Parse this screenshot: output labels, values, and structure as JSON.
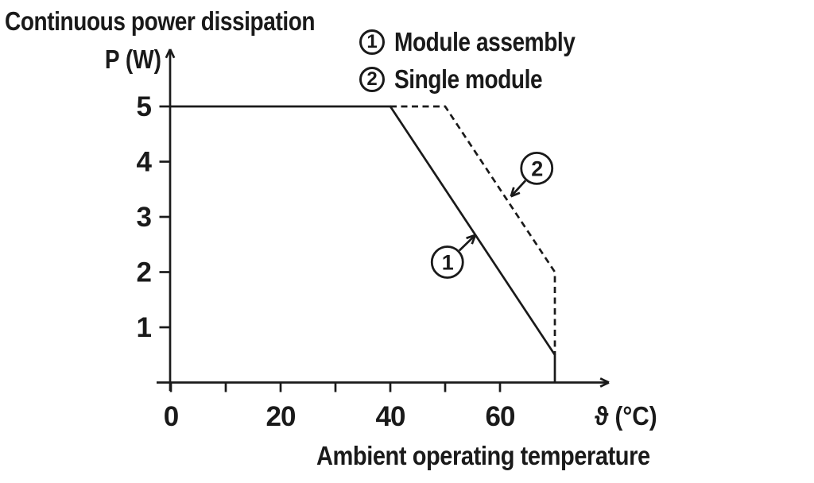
{
  "title": "Continuous power dissipation",
  "colors": {
    "line": "#1a1a1a",
    "background": "#ffffff"
  },
  "legend": [
    {
      "marker": "1",
      "label": "Module assembly"
    },
    {
      "marker": "2",
      "label": "Single module"
    }
  ],
  "chart_data": {
    "type": "line",
    "title": "Continuous power dissipation",
    "ylabel": "P (W)",
    "xlabel": "ϑ (°C)",
    "xlabel_caption": "Ambient operating temperature",
    "xlim": [
      0,
      75
    ],
    "ylim": [
      0,
      5.5
    ],
    "grid": false,
    "x_ticks": [
      0,
      10,
      20,
      30,
      40,
      50,
      60
    ],
    "x_labeled_ticks": [
      0,
      20,
      40,
      60
    ],
    "y_ticks": [
      1,
      2,
      3,
      4,
      5
    ],
    "legend_position": "top-right",
    "series": [
      {
        "name": "Module assembly",
        "marker": "1",
        "style": "solid",
        "points": [
          [
            0,
            5
          ],
          [
            40,
            5
          ],
          [
            70,
            0.5
          ],
          [
            70,
            0
          ]
        ]
      },
      {
        "name": "Single module",
        "marker": "2",
        "style": "dashed",
        "points": [
          [
            40,
            5
          ],
          [
            50,
            5
          ],
          [
            70,
            2
          ],
          [
            70,
            0.5
          ]
        ]
      }
    ],
    "annotations": [
      {
        "text": "1",
        "at": [
          50.4,
          2.18
        ],
        "arrow_to": [
          55.5,
          2.67
        ]
      },
      {
        "text": "2",
        "at": [
          66.7,
          3.88
        ],
        "arrow_to": [
          62.0,
          3.37
        ]
      }
    ]
  }
}
